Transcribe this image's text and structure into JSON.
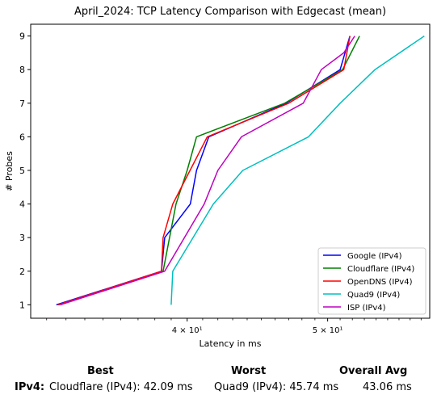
{
  "chart_data": {
    "type": "line",
    "title": "April_2024: TCP Latency Comparison with Edgecast (mean)",
    "xlabel": "Latency in ms",
    "ylabel": "# Probes",
    "x_scale": "log",
    "xlim": [
      31.2,
      58.8
    ],
    "ylim": [
      0.6,
      9.35
    ],
    "x_ticks": [
      {
        "value": 40,
        "label": "4 × 10¹"
      },
      {
        "value": 50,
        "label": "5 × 10¹"
      }
    ],
    "y_ticks": [
      1,
      2,
      3,
      4,
      5,
      6,
      7,
      8,
      9
    ],
    "legend_position": "lower-right",
    "series": [
      {
        "name": "Google (IPv4)",
        "color": "#0000ff",
        "x": [
          32.5,
          38.4,
          38.6,
          40.2,
          40.6,
          41.4,
          46.8,
          51.0,
          51.8
        ],
        "y": [
          1,
          2,
          3,
          4,
          5,
          6,
          7,
          8,
          9
        ]
      },
      {
        "name": "Cloudflare (IPv4)",
        "color": "#008000",
        "x": [
          32.6,
          38.5,
          39.3,
          40.0,
          40.6,
          46.7,
          51.2,
          52.6
        ],
        "y": [
          1,
          2,
          4,
          5,
          6,
          7,
          8,
          9
        ]
      },
      {
        "name": "OpenDNS (IPv4)",
        "color": "#ff0000",
        "x": [
          32.6,
          38.4,
          38.5,
          39.1,
          41.3,
          47.0,
          51.3,
          51.8
        ],
        "y": [
          1,
          2,
          3,
          4,
          6,
          7,
          8,
          9
        ]
      },
      {
        "name": "Quad9 (IPv4)",
        "color": "#00bfbf",
        "x": [
          39.0,
          39.1,
          41.7,
          43.7,
          48.5,
          51.0,
          53.9,
          58.3
        ],
        "y": [
          1,
          2,
          4,
          5,
          6,
          7,
          8,
          9
        ]
      },
      {
        "name": "ISP (IPv4)",
        "color": "#bf00bf",
        "x": [
          32.7,
          38.6,
          41.1,
          42.0,
          43.6,
          48.1,
          49.5,
          51.3,
          52.2
        ],
        "y": [
          1,
          2,
          4,
          5,
          6,
          7,
          8,
          8.5,
          9
        ]
      }
    ]
  },
  "summary": {
    "headers": {
      "best": "Best",
      "worst": "Worst",
      "overall": "Overall Avg"
    },
    "row_label": "IPv4:",
    "best": "Cloudflare (IPv4): 42.09 ms",
    "worst": "Quad9 (IPv4): 45.74 ms",
    "overall": "43.06 ms"
  }
}
